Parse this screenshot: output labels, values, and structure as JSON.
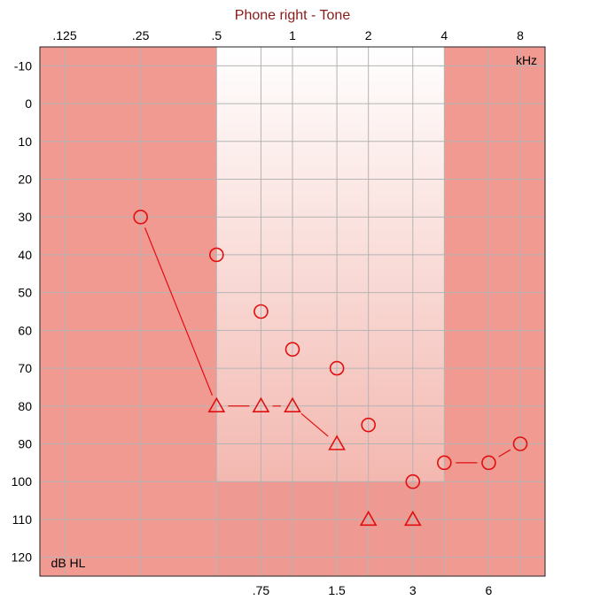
{
  "colors": {
    "shaded_region": "#f09a92",
    "lower_band": "#ee9a92",
    "grid": "#b4b4b4",
    "marker": "#e01010",
    "title": "#8b1a1a"
  },
  "chart_data": {
    "type": "scatter",
    "title": "Phone right - Tone",
    "x_unit_label": "kHz",
    "y_unit_label": "dB HL",
    "x_scale": "log2",
    "y_reversed": true,
    "grid": true,
    "xlim": [
      0.125,
      8
    ],
    "ylim": [
      -15,
      125
    ],
    "top_ticks": [
      {
        "label": ".125",
        "value": 0.125
      },
      {
        "label": ".25",
        "value": 0.25
      },
      {
        "label": ".5",
        "value": 0.5
      },
      {
        "label": "1",
        "value": 1
      },
      {
        "label": "2",
        "value": 2
      },
      {
        "label": "4",
        "value": 4
      },
      {
        "label": "8",
        "value": 8
      }
    ],
    "bottom_ticks": [
      {
        "label": ".75",
        "value": 0.75
      },
      {
        "label": "1.5",
        "value": 1.5
      },
      {
        "label": "3",
        "value": 3
      },
      {
        "label": "6",
        "value": 6
      }
    ],
    "y_ticks": [
      {
        "label": "-10",
        "value": -10
      },
      {
        "label": "0",
        "value": 0
      },
      {
        "label": "10",
        "value": 10
      },
      {
        "label": "20",
        "value": 20
      },
      {
        "label": "30",
        "value": 30
      },
      {
        "label": "40",
        "value": 40
      },
      {
        "label": "50",
        "value": 50
      },
      {
        "label": "60",
        "value": 60
      },
      {
        "label": "70",
        "value": 70
      },
      {
        "label": "80",
        "value": 80
      },
      {
        "label": "90",
        "value": 90
      },
      {
        "label": "100",
        "value": 100
      },
      {
        "label": "110",
        "value": 110
      },
      {
        "label": "120",
        "value": 120
      }
    ],
    "shaded_regions": [
      {
        "x_from": 0.125,
        "x_to": 0.5
      },
      {
        "x_from": 4,
        "x_to": 8
      }
    ],
    "unshaded_band": {
      "x_from": 0.5,
      "x_to": 4,
      "y_from": -15,
      "y_to": 100
    },
    "series": [
      {
        "marker": "circle",
        "points": [
          {
            "x": 0.25,
            "y": 30
          },
          {
            "x": 0.5,
            "y": 40
          },
          {
            "x": 0.75,
            "y": 55
          },
          {
            "x": 1,
            "y": 65
          },
          {
            "x": 1.5,
            "y": 70
          },
          {
            "x": 2,
            "y": 85
          },
          {
            "x": 3,
            "y": 100
          },
          {
            "x": 4,
            "y": 95
          },
          {
            "x": 6,
            "y": 95
          },
          {
            "x": 8,
            "y": 90
          }
        ]
      },
      {
        "marker": "triangle",
        "points": [
          {
            "x": 0.5,
            "y": 80
          },
          {
            "x": 0.75,
            "y": 80
          },
          {
            "x": 1,
            "y": 80
          },
          {
            "x": 1.5,
            "y": 90
          },
          {
            "x": 2,
            "y": 110
          },
          {
            "x": 3,
            "y": 110
          }
        ]
      }
    ],
    "connectors": [
      {
        "from": {
          "x": 0.25,
          "y": 30
        },
        "to": {
          "x": 0.5,
          "y": 80
        }
      },
      {
        "from": {
          "x": 0.5,
          "y": 80
        },
        "to": {
          "x": 0.75,
          "y": 80
        }
      },
      {
        "from": {
          "x": 0.75,
          "y": 80
        },
        "to": {
          "x": 1,
          "y": 80
        }
      },
      {
        "from": {
          "x": 1,
          "y": 80
        },
        "to": {
          "x": 1.5,
          "y": 90
        }
      },
      {
        "from": {
          "x": 4,
          "y": 95
        },
        "to": {
          "x": 6,
          "y": 95
        }
      },
      {
        "from": {
          "x": 6,
          "y": 95
        },
        "to": {
          "x": 8,
          "y": 90
        }
      }
    ]
  }
}
